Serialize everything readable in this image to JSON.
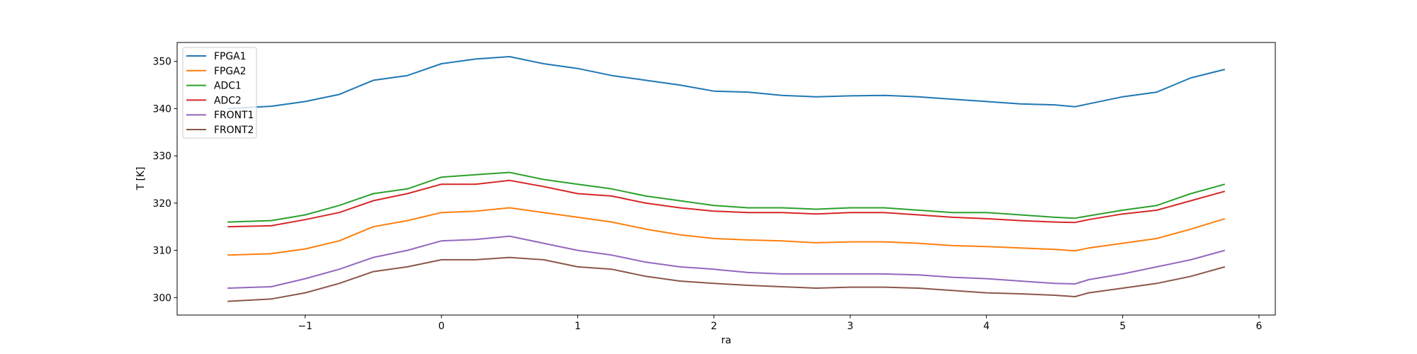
{
  "chart_data": {
    "type": "line",
    "title": "",
    "xlabel": "ra",
    "ylabel": "T [K]",
    "xlim": [
      -1.94,
      6.12
    ],
    "ylim": [
      296.3,
      354
    ],
    "xticks": [
      -1,
      0,
      1,
      2,
      3,
      4,
      5,
      6
    ],
    "yticks": [
      300,
      310,
      320,
      330,
      340,
      350
    ],
    "grid": false,
    "legend_position": "top-left",
    "x": [
      -1.57,
      -1.25,
      -1,
      -0.75,
      -0.5,
      -0.25,
      0,
      0.25,
      0.5,
      0.75,
      1,
      1.25,
      1.5,
      1.75,
      2,
      2.25,
      2.5,
      2.75,
      3,
      3.25,
      3.5,
      3.75,
      4,
      4.25,
      4.5,
      4.65,
      4.75,
      5,
      5.25,
      5.5,
      5.75
    ],
    "series": [
      {
        "name": "FPGA1",
        "color": "#1f77b4",
        "values": [
          340,
          340.5,
          341.5,
          343,
          346,
          347,
          349.5,
          350.5,
          351,
          349.5,
          348.5,
          347,
          346,
          345,
          343.7,
          343.5,
          342.8,
          342.5,
          342.7,
          342.8,
          342.5,
          342,
          341.5,
          341,
          340.8,
          340.4,
          341,
          342.5,
          343.5,
          346.5,
          348.3
        ]
      },
      {
        "name": "FPGA2",
        "color": "#ff7f0e",
        "values": [
          309,
          309.3,
          310.3,
          312,
          315,
          316.3,
          318,
          318.3,
          319,
          318,
          317,
          316,
          314.5,
          313.3,
          312.5,
          312.2,
          312,
          311.6,
          311.8,
          311.8,
          311.5,
          311,
          310.8,
          310.5,
          310.2,
          309.9,
          310.5,
          311.5,
          312.5,
          314.5,
          316.7
        ]
      },
      {
        "name": "ADC1",
        "color": "#2ca02c",
        "values": [
          316,
          316.3,
          317.5,
          319.5,
          322,
          323,
          325.5,
          326,
          326.5,
          325,
          324,
          323,
          321.5,
          320.5,
          319.5,
          319,
          319,
          318.7,
          319,
          319,
          318.5,
          318,
          318,
          317.5,
          317,
          316.8,
          317.3,
          318.5,
          319.5,
          322,
          324
        ]
      },
      {
        "name": "ADC2",
        "color": "#d62728",
        "values": [
          315,
          315.2,
          316.5,
          318,
          320.5,
          322,
          324,
          324,
          324.8,
          323.5,
          322,
          321.5,
          320,
          319,
          318.3,
          318,
          318,
          317.7,
          318,
          318,
          317.5,
          317,
          316.7,
          316.3,
          316,
          315.9,
          316.5,
          317.7,
          318.5,
          320.5,
          322.5
        ]
      },
      {
        "name": "FRONT1",
        "color": "#9467bd",
        "values": [
          302,
          302.3,
          304,
          306,
          308.5,
          310,
          312,
          312.3,
          313,
          311.5,
          310,
          309,
          307.5,
          306.5,
          306,
          305.3,
          305,
          305,
          305,
          305,
          304.8,
          304.3,
          304,
          303.5,
          303,
          302.9,
          303.8,
          305,
          306.5,
          308,
          310
        ]
      },
      {
        "name": "FRONT2",
        "color": "#8c564b",
        "values": [
          299.2,
          299.7,
          301,
          303,
          305.5,
          306.5,
          308,
          308,
          308.5,
          308,
          306.5,
          306,
          304.5,
          303.5,
          303,
          302.6,
          302.3,
          302,
          302.2,
          302.2,
          302,
          301.5,
          301,
          300.8,
          300.5,
          300.2,
          301,
          302,
          303,
          304.5,
          306.5
        ]
      }
    ]
  }
}
